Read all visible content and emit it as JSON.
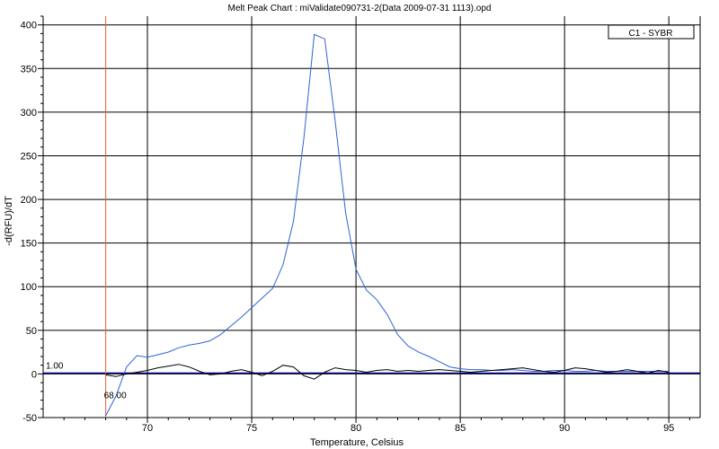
{
  "chart_data": {
    "type": "line",
    "title": "Melt Peak Chart : miValidate090731-2(Data 2009-07-31 1113).opd",
    "xlabel": "Temperature, Celsius",
    "ylabel": "-d(RFU)/dT",
    "xlim": [
      65,
      96.5
    ],
    "ylim": [
      -50,
      410
    ],
    "xticks": [
      70,
      75,
      80,
      85,
      90,
      95
    ],
    "yticks": [
      -50,
      0,
      50,
      100,
      150,
      200,
      250,
      300,
      350,
      400
    ],
    "grid": true,
    "legend": {
      "position": "top-right",
      "entries": [
        "C1 - SYBR"
      ]
    },
    "threshold": {
      "value": 1.0,
      "label": "1.00",
      "color": "#000080"
    },
    "vertical_marker": {
      "value": 68.0,
      "label": "68.00",
      "color": "#e0603a"
    },
    "series": [
      {
        "color": "#2e62d6",
        "x": [
          68.0,
          68.5,
          69.0,
          69.5,
          70.0,
          70.5,
          71.0,
          71.5,
          72.0,
          72.5,
          73.0,
          73.5,
          74.0,
          74.5,
          75.0,
          75.5,
          76.0,
          76.5,
          77.0,
          77.5,
          78.0,
          78.5,
          79.0,
          79.5,
          80.0,
          80.5,
          81.0,
          81.5,
          82.0,
          82.5,
          83.0,
          83.5,
          84.0,
          84.5,
          85.0,
          85.5,
          86.0,
          86.5,
          87.0,
          87.5,
          88.0,
          88.5,
          89.0,
          89.5,
          90.0,
          90.5,
          91.0,
          91.5,
          92.0,
          92.5,
          93.0,
          93.5,
          94.0,
          94.5,
          95.0
        ],
        "y": [
          -48,
          -25,
          8,
          21,
          19,
          22,
          25,
          30,
          33,
          35,
          38,
          45,
          55,
          65,
          76,
          87,
          98,
          125,
          175,
          270,
          389,
          384,
          290,
          185,
          120,
          96,
          85,
          68,
          45,
          32,
          25,
          20,
          14,
          8,
          6,
          5,
          5,
          4,
          4,
          5,
          4,
          3,
          3,
          4,
          4,
          3,
          3,
          4,
          3,
          3,
          3,
          3,
          3,
          3,
          3
        ]
      },
      {
        "color": "#000000",
        "x": [
          68.0,
          68.5,
          69.0,
          69.5,
          70.0,
          70.5,
          71.0,
          71.5,
          72.0,
          72.5,
          73.0,
          73.5,
          74.0,
          74.5,
          75.0,
          75.5,
          76.0,
          76.5,
          77.0,
          77.5,
          78.0,
          78.5,
          79.0,
          79.5,
          80.0,
          80.5,
          81.0,
          81.5,
          82.0,
          82.5,
          83.0,
          83.5,
          84.0,
          84.5,
          85.0,
          85.5,
          86.0,
          86.5,
          87.0,
          87.5,
          88.0,
          88.5,
          89.0,
          89.5,
          90.0,
          90.5,
          91.0,
          91.5,
          92.0,
          92.5,
          93.0,
          93.5,
          94.0,
          94.5,
          95.0
        ],
        "y": [
          -1,
          -3,
          0,
          2,
          4,
          7,
          9,
          11,
          8,
          3,
          -1,
          0,
          3,
          5,
          2,
          -2,
          3,
          10,
          8,
          -2,
          -6,
          2,
          7,
          5,
          4,
          2,
          4,
          5,
          3,
          4,
          3,
          4,
          5,
          4,
          3,
          2,
          3,
          4,
          5,
          6,
          7,
          5,
          3,
          2,
          4,
          7,
          6,
          4,
          2,
          3,
          5,
          3,
          1,
          4,
          2
        ]
      }
    ]
  }
}
